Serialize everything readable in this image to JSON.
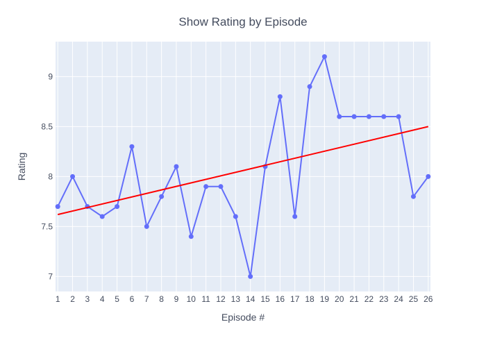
{
  "chart_data": {
    "type": "line",
    "title": "Show Rating by Episode",
    "xlabel": "Episode #",
    "ylabel": "Rating",
    "x": [
      1,
      2,
      3,
      4,
      5,
      6,
      7,
      8,
      9,
      10,
      11,
      12,
      13,
      14,
      15,
      16,
      17,
      18,
      19,
      20,
      21,
      22,
      23,
      24,
      25,
      26
    ],
    "xlim": [
      0.85,
      26.15
    ],
    "ylim": [
      6.85,
      9.35
    ],
    "yticks": [
      7,
      7.5,
      8,
      8.5,
      9
    ],
    "ytick_labels": [
      "7",
      "7.5",
      "8",
      "8.5",
      "9"
    ],
    "xtick_labels": [
      "1",
      "2",
      "3",
      "4",
      "5",
      "6",
      "7",
      "8",
      "9",
      "10",
      "11",
      "12",
      "13",
      "14",
      "15",
      "16",
      "17",
      "18",
      "19",
      "20",
      "21",
      "22",
      "23",
      "24",
      "25",
      "26"
    ],
    "grid": true,
    "series": [
      {
        "color": "#636efa",
        "mode": "lines+markers",
        "values": [
          7.7,
          8.0,
          7.7,
          7.6,
          7.7,
          8.3,
          7.5,
          7.8,
          8.1,
          7.4,
          7.9,
          7.9,
          7.6,
          7.0,
          8.1,
          8.8,
          7.6,
          8.9,
          9.2,
          8.6,
          8.6,
          8.6,
          8.6,
          8.6,
          7.8,
          8.0
        ]
      },
      {
        "color": "#ff0000",
        "mode": "lines",
        "x": [
          1,
          26
        ],
        "values": [
          7.62,
          8.5
        ]
      }
    ],
    "colors": {
      "plot_bg": "#e5ecf6",
      "grid": "#ffffff",
      "text": "#444c5e"
    }
  }
}
